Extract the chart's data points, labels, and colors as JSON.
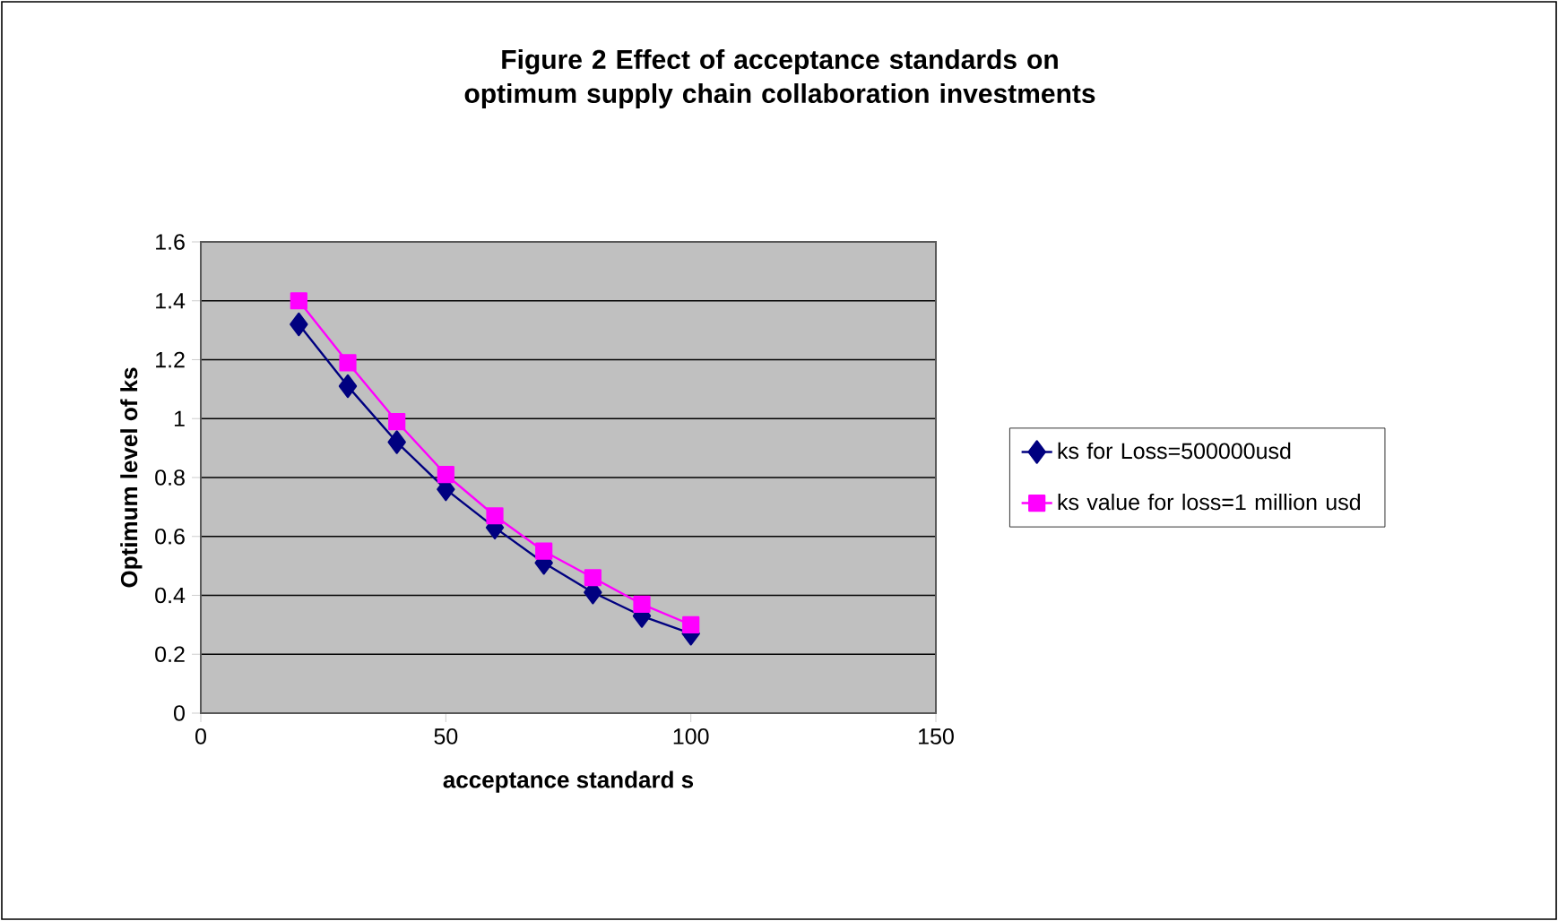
{
  "chart_data": {
    "type": "line",
    "title": "Figure 2 Effect of acceptance standards on optimum supply chain collaboration investments",
    "xlabel": "acceptance standard s",
    "ylabel": "Optimum level of ks",
    "x": [
      20,
      30,
      40,
      50,
      60,
      70,
      80,
      90,
      100
    ],
    "series": [
      {
        "name": "ks for Loss=500000usd",
        "color": "#000080",
        "marker": "diamond",
        "values": [
          1.32,
          1.11,
          0.92,
          0.76,
          0.63,
          0.51,
          0.41,
          0.33,
          0.27
        ]
      },
      {
        "name": "ks value for loss=1 million usd",
        "color": "#ff00ff",
        "marker": "square",
        "values": [
          1.4,
          1.19,
          0.99,
          0.81,
          0.67,
          0.55,
          0.46,
          0.37,
          0.3
        ]
      }
    ],
    "xlim": [
      0,
      150
    ],
    "xticks": [
      0,
      50,
      100,
      150
    ],
    "ylim": [
      0,
      1.6
    ],
    "yticks": [
      0,
      0.2,
      0.4,
      0.6,
      0.8,
      1,
      1.2,
      1.4,
      1.6
    ],
    "grid": "y",
    "legend": "right",
    "line_style": "solid"
  }
}
